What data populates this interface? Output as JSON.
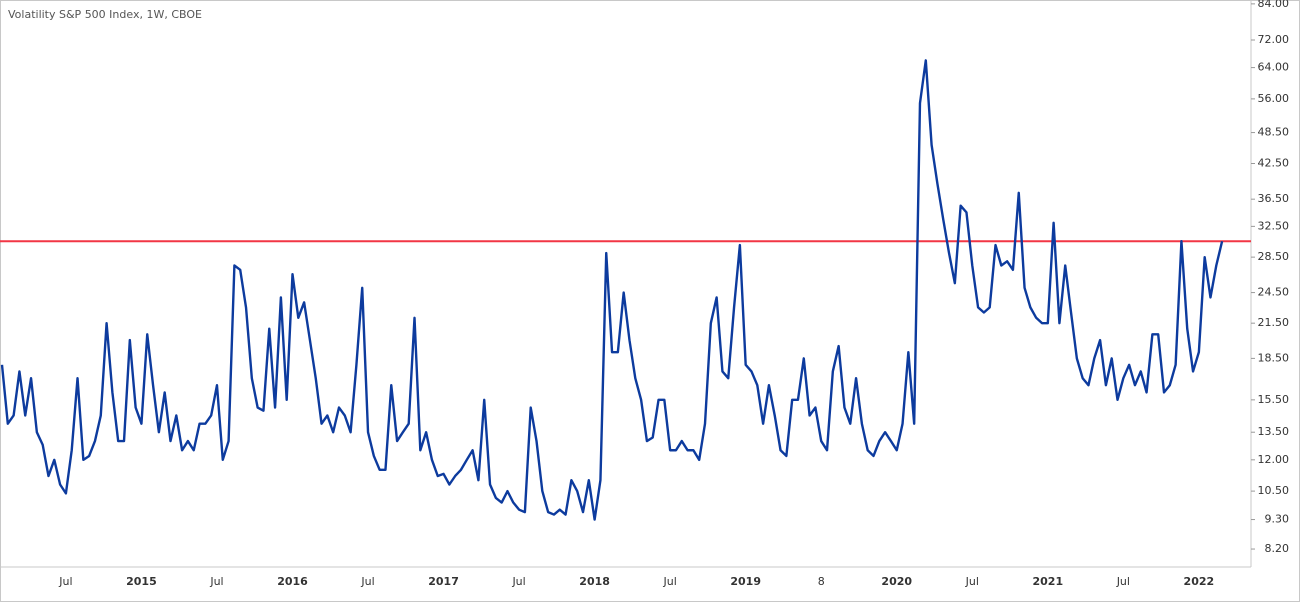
{
  "chart_data": {
    "type": "line",
    "title": "Volatility S&P 500 Index, 1W, CBOE",
    "log_scale": true,
    "grid": false,
    "color": "#0d3b9e",
    "reference_line": {
      "value": 30.5,
      "color": "#f23645"
    },
    "ylim": [
      7.66,
      85.4
    ],
    "yticks": [
      {
        "value": 8.2,
        "label": "8.20"
      },
      {
        "value": 9.3,
        "label": "9.30"
      },
      {
        "value": 10.5,
        "label": "10.50"
      },
      {
        "value": 12,
        "label": "12.00"
      },
      {
        "value": 13.5,
        "label": "13.50"
      },
      {
        "value": 15.5,
        "label": "15.50"
      },
      {
        "value": 18.5,
        "label": "18.50"
      },
      {
        "value": 21.5,
        "label": "21.50"
      },
      {
        "value": 24.5,
        "label": "24.50"
      },
      {
        "value": 28.5,
        "label": "28.50"
      },
      {
        "value": 32.5,
        "label": "32.50"
      },
      {
        "value": 36.5,
        "label": "36.50"
      },
      {
        "value": 42.5,
        "label": "42.50"
      },
      {
        "value": 48.5,
        "label": "48.50"
      },
      {
        "value": 56,
        "label": "56.00"
      },
      {
        "value": 64,
        "label": "64.00"
      },
      {
        "value": 72,
        "label": "72.00"
      },
      {
        "value": 84,
        "label": "84.00"
      }
    ],
    "categories": [
      null,
      null,
      null,
      null,
      null,
      null,
      null,
      null,
      null,
      null,
      null,
      "Jul",
      null,
      null,
      null,
      null,
      null,
      null,
      null,
      null,
      null,
      null,
      null,
      null,
      "2015",
      null,
      null,
      null,
      null,
      null,
      null,
      null,
      null,
      null,
      null,
      null,
      null,
      "Jul",
      null,
      null,
      null,
      null,
      null,
      null,
      null,
      null,
      null,
      null,
      null,
      null,
      "2016",
      null,
      null,
      null,
      null,
      null,
      null,
      null,
      null,
      null,
      null,
      null,
      null,
      "Jul",
      null,
      null,
      null,
      null,
      null,
      null,
      null,
      null,
      null,
      null,
      null,
      null,
      "2017",
      null,
      null,
      null,
      null,
      null,
      null,
      null,
      null,
      null,
      null,
      null,
      null,
      "Jul",
      null,
      null,
      null,
      null,
      null,
      null,
      null,
      null,
      null,
      null,
      null,
      null,
      "2018",
      null,
      null,
      null,
      null,
      null,
      null,
      null,
      null,
      null,
      null,
      null,
      null,
      "Jul",
      null,
      null,
      null,
      null,
      null,
      null,
      null,
      null,
      null,
      null,
      null,
      null,
      "2019",
      null,
      null,
      null,
      null,
      null,
      null,
      null,
      null,
      null,
      null,
      null,
      null,
      "8",
      null,
      null,
      null,
      null,
      null,
      null,
      null,
      null,
      null,
      null,
      null,
      null,
      "2020",
      null,
      null,
      null,
      null,
      null,
      null,
      null,
      null,
      null,
      null,
      null,
      null,
      "Jul",
      null,
      null,
      null,
      null,
      null,
      null,
      null,
      null,
      null,
      null,
      null,
      null,
      "2021",
      null,
      null,
      null,
      null,
      null,
      null,
      null,
      null,
      null,
      null,
      null,
      null,
      "Jul",
      null,
      null,
      null,
      null,
      null,
      null,
      null,
      null,
      null,
      null,
      null,
      null,
      "2022",
      null,
      null,
      null,
      null
    ],
    "values": [
      18,
      14,
      14.5,
      17.5,
      14.5,
      17,
      13.5,
      12.8,
      11.2,
      12,
      10.8,
      10.4,
      12.5,
      17,
      12,
      12.2,
      13,
      14.5,
      21.5,
      16,
      13,
      13,
      20,
      15,
      14,
      20.5,
      16.5,
      13.5,
      16,
      13,
      14.5,
      12.5,
      13,
      12.5,
      14,
      14,
      14.5,
      16.5,
      12,
      13,
      27.5,
      27,
      23,
      17,
      15,
      14.8,
      21,
      15,
      24,
      15.5,
      26.5,
      22,
      23.5,
      20,
      17,
      14,
      14.5,
      13.5,
      15,
      14.5,
      13.5,
      18,
      25,
      13.5,
      12.2,
      11.5,
      11.5,
      16.5,
      13,
      13.5,
      14,
      22,
      12.5,
      13.5,
      12,
      11.2,
      11.3,
      10.8,
      11.2,
      11.5,
      12,
      12.5,
      11,
      15.5,
      10.8,
      10.2,
      10,
      10.5,
      10,
      9.7,
      9.6,
      15,
      13,
      10.5,
      9.6,
      9.5,
      9.7,
      9.5,
      11,
      10.5,
      9.6,
      11,
      9.3,
      11,
      29,
      19,
      19,
      24.5,
      20,
      17,
      15.5,
      13,
      13.2,
      15.5,
      15.5,
      12.5,
      12.5,
      13,
      12.5,
      12.5,
      12,
      14,
      21.5,
      24,
      17.5,
      17,
      23,
      30,
      18,
      17.5,
      16.5,
      14,
      16.5,
      14.5,
      12.5,
      12.2,
      15.5,
      15.5,
      18.5,
      14.5,
      15,
      13,
      12.5,
      17.5,
      19.5,
      15,
      14,
      17,
      14,
      12.5,
      12.2,
      13,
      13.5,
      13,
      12.5,
      14,
      19,
      14,
      55,
      66,
      46,
      39,
      33.5,
      29,
      25.5,
      35.5,
      34.5,
      27.5,
      23,
      22.5,
      23,
      30,
      27.5,
      28,
      27,
      37.5,
      25,
      23,
      22,
      21.5,
      21.5,
      33,
      21.5,
      27.5,
      22.5,
      18.5,
      17,
      16.5,
      18.5,
      20,
      16.5,
      18.5,
      15.5,
      17,
      18,
      16.5,
      17.5,
      16,
      20.5,
      20.5,
      16,
      16.5,
      18,
      30.5,
      21,
      17.5,
      19,
      28.5,
      24,
      27.5,
      30.5
    ]
  }
}
